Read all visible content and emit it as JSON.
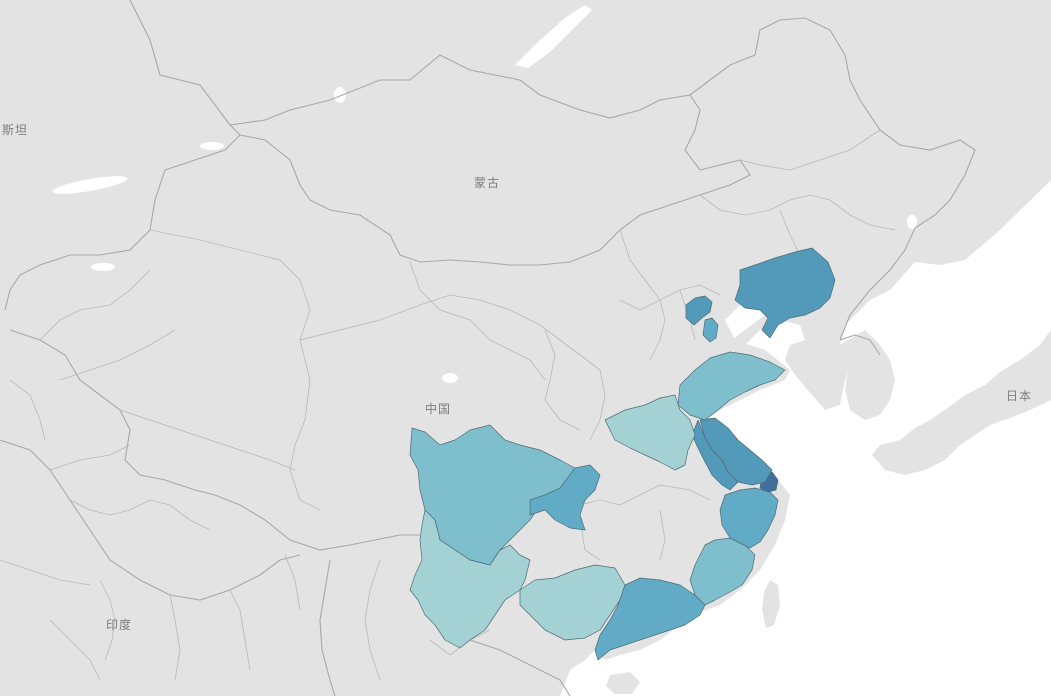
{
  "labels": {
    "pakistan": "斯坦",
    "mongolia": "蒙古",
    "china": "中国",
    "japan": "日本",
    "india": "印度"
  },
  "colors": {
    "ocean": "#ffffff",
    "land": "#e3e3e3",
    "land_dark": "#dcdcdc",
    "lake": "#ffffff",
    "border": "#b5b5b5",
    "scale_lightest": "#c4e3dc",
    "scale_light": "#a3d1d4",
    "scale_mid": "#7fbecd",
    "scale_medium_dark": "#62abc6",
    "scale_dark": "#5399ba",
    "scale_darkest": "#3f6f9a"
  },
  "provinces": [
    {
      "name": "sichuan",
      "level": 0.35
    },
    {
      "name": "chongqing",
      "level": 0.62
    },
    {
      "name": "yunnan",
      "level": 0.15
    },
    {
      "name": "guangxi",
      "level": 0.12
    },
    {
      "name": "guangdong",
      "level": 0.5
    },
    {
      "name": "fujian",
      "level": 0.45
    },
    {
      "name": "zhejiang",
      "level": 0.65
    },
    {
      "name": "shanghai",
      "level": 0.95
    },
    {
      "name": "jiangsu",
      "level": 0.85
    },
    {
      "name": "anhui-north",
      "level": 0.8
    },
    {
      "name": "shandong",
      "level": 0.38
    },
    {
      "name": "henan",
      "level": 0.1
    },
    {
      "name": "beijing",
      "level": 0.78
    },
    {
      "name": "tianjin",
      "level": 0.5
    },
    {
      "name": "liaoning",
      "level": 0.7
    }
  ]
}
